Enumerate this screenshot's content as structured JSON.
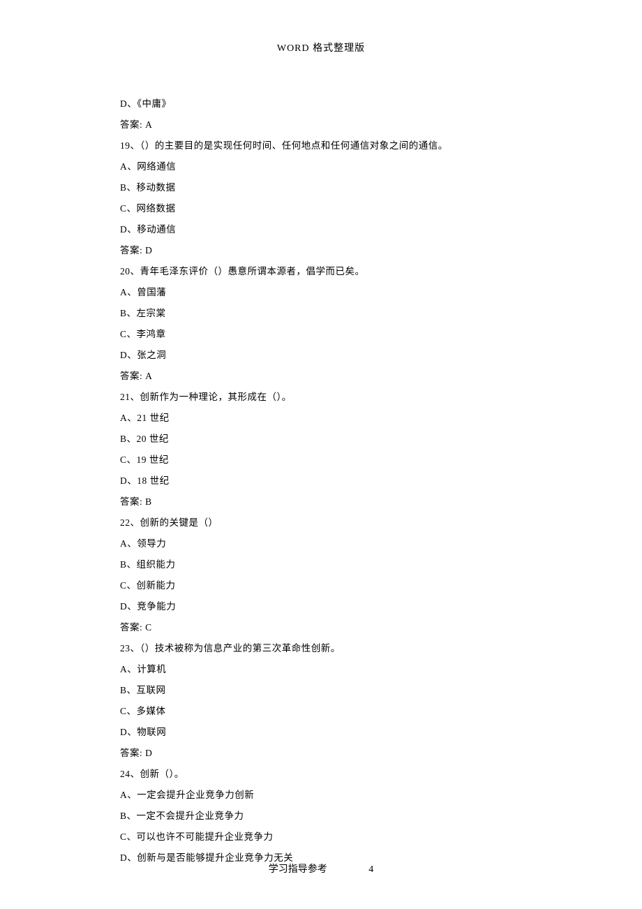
{
  "header": "WORD 格式整理版",
  "lines": [
    "D、《中庸》",
    "答案: A",
    "19、（）的主要目的是实现任何时间、任何地点和任何通信对象之间的通信。",
    "A、网络通信",
    "B、移动数据",
    "C、网络数据",
    "D、移动通信",
    "答案: D",
    "20、青年毛泽东评价（）愚意所谓本源者，倡学而已矣。",
    "A、曾国藩",
    "B、左宗棠",
    "C、李鸿章",
    "D、张之洞",
    "答案: A",
    "21、创新作为一种理论，其形成在（）。",
    "A、21 世纪",
    "B、20 世纪",
    "C、19 世纪",
    "D、18 世纪",
    "答案: B",
    "22、创新的关键是（）",
    "A、领导力",
    "B、组织能力",
    "C、创新能力",
    "D、竞争能力",
    "答案: C",
    "23、（）技术被称为信息产业的第三次革命性创新。",
    "A、计算机",
    "B、互联网",
    "C、多媒体",
    "D、物联网",
    "答案: D",
    "24、创新（）。",
    "A、一定会提升企业竞争力创新",
    "B、一定不会提升企业竞争力",
    "C、可以也许不可能提升企业竞争力",
    "D、创新与是否能够提升企业竞争力无关"
  ],
  "footer_text": "学习指导参考",
  "page_number": "4"
}
